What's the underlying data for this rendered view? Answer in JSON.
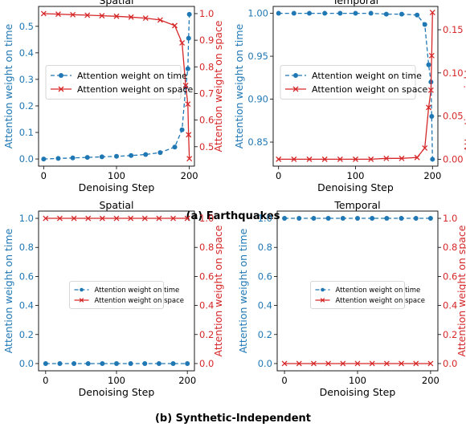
{
  "colors": {
    "time": "#1f77b4",
    "space": "#d62728"
  },
  "groups": [
    {
      "caption": "(a) Earthquakes"
    },
    {
      "caption": "(b) Synthetic-Independent"
    }
  ],
  "chart_data": [
    {
      "type": "line",
      "title": "Spatial",
      "xlabel": "Denoising Step",
      "ylabel_left": "Attention weight on time",
      "ylabel_right": "Attention weight on space",
      "xlim": [
        -7,
        207
      ],
      "ylim_left": [
        -0.027,
        0.575
      ],
      "ylim_right": [
        0.427,
        1.027
      ],
      "xticks": [
        0,
        100,
        200
      ],
      "yticks_left": [
        0.0,
        0.1,
        0.2,
        0.3,
        0.4,
        0.5
      ],
      "yticks_left_labels": [
        "0.0",
        "0.1",
        "0.2",
        "0.3",
        "0.4",
        "0.5"
      ],
      "yticks_right": [
        0.5,
        0.6,
        0.7,
        0.8,
        0.9,
        1.0
      ],
      "yticks_right_labels": [
        "0.5",
        "0.6",
        "0.7",
        "0.8",
        "0.9",
        "1.0"
      ],
      "legend_position": "center-left",
      "legend_size": "normal",
      "series": [
        {
          "name": "Attention weight on time",
          "axis": "left",
          "color": "#1f77b4",
          "linestyle": "dashed",
          "marker": "circle",
          "x": [
            0,
            20,
            40,
            60,
            80,
            100,
            120,
            140,
            160,
            180,
            190,
            195,
            198,
            199,
            200
          ],
          "y": [
            0.0,
            0.002,
            0.004,
            0.006,
            0.008,
            0.01,
            0.013,
            0.017,
            0.024,
            0.045,
            0.11,
            0.27,
            0.34,
            0.455,
            0.545
          ]
        },
        {
          "name": "Attention weight on space",
          "axis": "right",
          "color": "#d62728",
          "linestyle": "solid",
          "marker": "x",
          "x": [
            0,
            20,
            40,
            60,
            80,
            100,
            120,
            140,
            160,
            180,
            190,
            195,
            198,
            199,
            200
          ],
          "y": [
            1.0,
            0.998,
            0.996,
            0.994,
            0.992,
            0.99,
            0.987,
            0.983,
            0.976,
            0.955,
            0.89,
            0.73,
            0.66,
            0.545,
            0.455
          ]
        }
      ]
    },
    {
      "type": "line",
      "title": "Temporal",
      "xlabel": "Denoising Step",
      "ylabel_left": "Attention weight on time",
      "ylabel_right": "Attention weight on space",
      "xlim": [
        -7,
        207
      ],
      "ylim_left": [
        0.822,
        1.008
      ],
      "ylim_right": [
        -0.008,
        0.177
      ],
      "xticks": [
        0,
        100,
        200
      ],
      "yticks_left": [
        0.85,
        0.9,
        0.95,
        1.0
      ],
      "yticks_left_labels": [
        "0.85",
        "0.90",
        "0.95",
        "1.00"
      ],
      "yticks_right": [
        0.0,
        0.05,
        0.1,
        0.15
      ],
      "yticks_right_labels": [
        "0.00",
        "0.05",
        "0.10",
        "0.15"
      ],
      "legend_position": "center-left",
      "legend_size": "normal",
      "series": [
        {
          "name": "Attention weight on time",
          "axis": "left",
          "color": "#1f77b4",
          "linestyle": "dashed",
          "marker": "circle",
          "x": [
            0,
            20,
            40,
            60,
            80,
            100,
            120,
            140,
            160,
            180,
            190,
            195,
            198,
            199,
            200
          ],
          "y": [
            1.0,
            1.0,
            1.0,
            1.0,
            1.0,
            1.0,
            1.0,
            0.999,
            0.999,
            0.998,
            0.987,
            0.94,
            0.92,
            0.88,
            0.83
          ]
        },
        {
          "name": "Attention weight on space",
          "axis": "right",
          "color": "#d62728",
          "linestyle": "solid",
          "marker": "x",
          "x": [
            0,
            20,
            40,
            60,
            80,
            100,
            120,
            140,
            160,
            180,
            190,
            195,
            198,
            199,
            200
          ],
          "y": [
            0.0,
            0.0,
            0.0,
            0.0,
            0.0,
            0.0,
            0.0,
            0.001,
            0.001,
            0.002,
            0.013,
            0.06,
            0.08,
            0.12,
            0.17
          ]
        }
      ]
    },
    {
      "type": "line",
      "title": "Spatial",
      "xlabel": "Denoising Step",
      "ylabel_left": "Attention weight on time",
      "ylabel_right": "Attention weight on space",
      "xlim": [
        -10,
        210
      ],
      "ylim_left": [
        -0.05,
        1.05
      ],
      "ylim_right": [
        -0.05,
        1.05
      ],
      "xticks": [
        0,
        100,
        200
      ],
      "yticks_left": [
        0.0,
        0.2,
        0.4,
        0.6,
        0.8,
        1.0
      ],
      "yticks_left_labels": [
        "0.0",
        "0.2",
        "0.4",
        "0.6",
        "0.8",
        "1.0"
      ],
      "yticks_right": [
        0.0,
        0.2,
        0.4,
        0.6,
        0.8,
        1.0
      ],
      "yticks_right_labels": [
        "0.0",
        "0.2",
        "0.4",
        "0.6",
        "0.8",
        "1.0"
      ],
      "legend_position": "center",
      "legend_size": "small",
      "series": [
        {
          "name": "Attention weight on time",
          "axis": "left",
          "color": "#1f77b4",
          "linestyle": "dashed",
          "marker": "circle",
          "x": [
            0,
            20,
            40,
            60,
            80,
            100,
            120,
            140,
            160,
            180,
            200
          ],
          "y": [
            0,
            0,
            0,
            0,
            0,
            0,
            0,
            0,
            0,
            0,
            0
          ]
        },
        {
          "name": "Attention weight on space",
          "axis": "right",
          "color": "#d62728",
          "linestyle": "solid",
          "marker": "x",
          "x": [
            0,
            20,
            40,
            60,
            80,
            100,
            120,
            140,
            160,
            180,
            200
          ],
          "y": [
            1,
            1,
            1,
            1,
            1,
            1,
            1,
            1,
            1,
            1,
            1
          ]
        }
      ]
    },
    {
      "type": "line",
      "title": "Temporal",
      "xlabel": "Denoising Step",
      "ylabel_left": "Attention weight on time",
      "ylabel_right": "Attention weight on space",
      "xlim": [
        -10,
        210
      ],
      "ylim_left": [
        -0.05,
        1.05
      ],
      "ylim_right": [
        -0.05,
        1.05
      ],
      "xticks": [
        0,
        100,
        200
      ],
      "yticks_left": [
        0.0,
        0.2,
        0.4,
        0.6,
        0.8,
        1.0
      ],
      "yticks_left_labels": [
        "0.0",
        "0.2",
        "0.4",
        "0.6",
        "0.8",
        "1.0"
      ],
      "yticks_right": [
        0.0,
        0.2,
        0.4,
        0.6,
        0.8,
        1.0
      ],
      "yticks_right_labels": [
        "0.0",
        "0.2",
        "0.4",
        "0.6",
        "0.8",
        "1.0"
      ],
      "legend_position": "center",
      "legend_size": "small",
      "series": [
        {
          "name": "Attention weight on time",
          "axis": "left",
          "color": "#1f77b4",
          "linestyle": "dashed",
          "marker": "circle",
          "x": [
            0,
            20,
            40,
            60,
            80,
            100,
            120,
            140,
            160,
            180,
            200
          ],
          "y": [
            1,
            1,
            1,
            1,
            1,
            1,
            1,
            1,
            1,
            1,
            1
          ]
        },
        {
          "name": "Attention weight on space",
          "axis": "right",
          "color": "#d62728",
          "linestyle": "solid",
          "marker": "x",
          "x": [
            0,
            20,
            40,
            60,
            80,
            100,
            120,
            140,
            160,
            180,
            200
          ],
          "y": [
            0,
            0,
            0,
            0,
            0,
            0,
            0,
            0,
            0,
            0,
            0
          ]
        }
      ]
    }
  ]
}
